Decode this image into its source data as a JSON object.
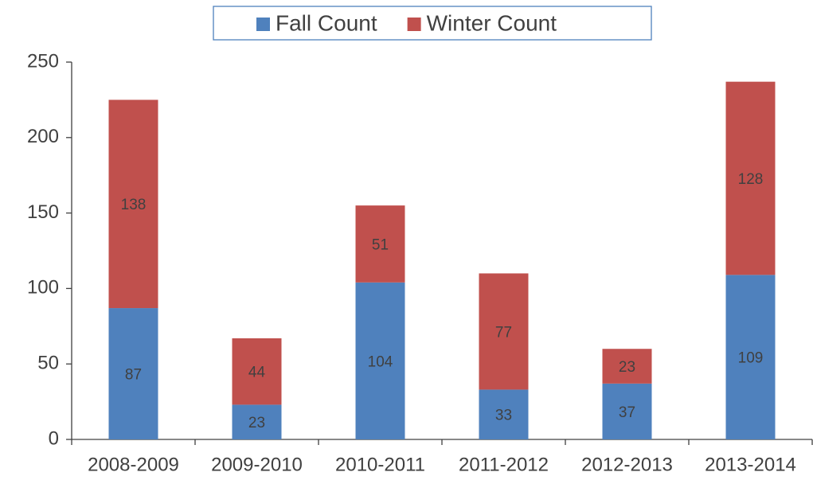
{
  "chart_data": {
    "type": "bar",
    "stacked": true,
    "categories": [
      "2008-2009",
      "2009-2010",
      "2010-2011",
      "2011-2012",
      "2012-2013",
      "2013-2014"
    ],
    "series": [
      {
        "name": "Fall Count",
        "color": "#4f81bd",
        "values": [
          87,
          23,
          104,
          33,
          37,
          109
        ]
      },
      {
        "name": "Winter Count",
        "color": "#c0504d",
        "values": [
          138,
          44,
          51,
          77,
          23,
          128
        ]
      }
    ],
    "ylim": [
      0,
      250
    ],
    "yticks": [
      0,
      50,
      100,
      150,
      200,
      250
    ],
    "legend": "top",
    "grid": false
  }
}
